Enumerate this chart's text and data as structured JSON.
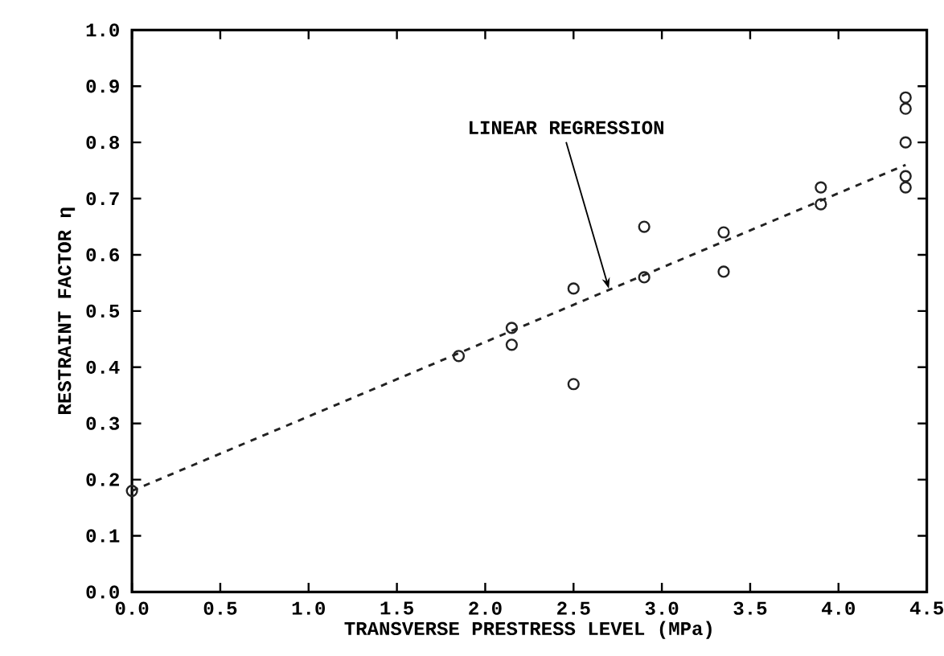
{
  "chart_data": {
    "type": "scatter",
    "xlabel": "TRANSVERSE PRESTRESS LEVEL (MPa)",
    "ylabel": "RESTRAINT FACTOR η",
    "xlim": [
      0,
      4.5
    ],
    "ylim": [
      0,
      1.0
    ],
    "xticks": [
      {
        "value": 0,
        "label": "0.0"
      },
      0.5,
      {
        "value": 1,
        "label": "1.0"
      },
      1.5,
      {
        "value": 2,
        "label": "2.0"
      },
      2.5,
      {
        "value": 3,
        "label": "3.0"
      },
      3.5,
      {
        "value": 4,
        "label": "4.0"
      },
      4.5
    ],
    "yticks": [
      {
        "value": 0,
        "label": "0.0"
      },
      0.1,
      0.2,
      0.3,
      0.4,
      0.5,
      0.6,
      0.7,
      0.8,
      0.9,
      {
        "value": 1,
        "label": "1.0"
      }
    ],
    "marker": "circle",
    "grid": false,
    "annotations": [
      {
        "text": "LINEAR REGRESSION",
        "x": 2.7,
        "y": 0.54
      }
    ],
    "series": [
      {
        "color": "#222222",
        "x": [
          0.0,
          1.85,
          2.15,
          2.15,
          2.5,
          2.5,
          2.9,
          2.9,
          3.35,
          3.35,
          3.9,
          3.9,
          4.38,
          4.38,
          4.38,
          4.38,
          4.38
        ],
        "values": [
          0.18,
          0.42,
          0.47,
          0.44,
          0.54,
          0.37,
          0.65,
          0.56,
          0.64,
          0.57,
          0.72,
          0.69,
          0.88,
          0.86,
          0.8,
          0.74,
          0.72
        ]
      },
      {
        "type": "line",
        "color": "#222222",
        "line_style": "dashed",
        "marker": "none",
        "x": [
          0.0,
          4.38
        ],
        "values": [
          0.18,
          0.76
        ]
      }
    ]
  }
}
